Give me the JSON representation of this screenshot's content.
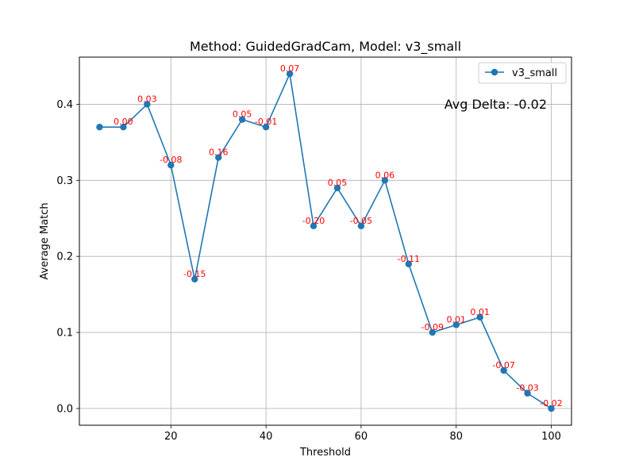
{
  "chart_data": {
    "type": "line",
    "title": "Method: GuidedGradCam, Model: v3_small",
    "xlabel": "Threshold",
    "ylabel": "Average Match",
    "xlim": [
      0.75,
      104.25
    ],
    "ylim": [
      -0.022,
      0.462
    ],
    "xticks": [
      20,
      40,
      60,
      80,
      100
    ],
    "yticks": [
      0.0,
      0.1,
      0.2,
      0.3,
      0.4
    ],
    "xtick_labels": [
      "20",
      "40",
      "60",
      "80",
      "100"
    ],
    "ytick_labels": [
      "0.0",
      "0.1",
      "0.2",
      "0.3",
      "0.4"
    ],
    "grid": true,
    "legend_position": "top-right",
    "annotation": "Avg Delta: -0.02",
    "x": [
      5,
      10,
      15,
      20,
      25,
      30,
      35,
      40,
      45,
      50,
      55,
      60,
      65,
      70,
      75,
      80,
      85,
      90,
      95,
      100
    ],
    "series": [
      {
        "name": "v3_small",
        "color": "#1f77b4",
        "values": [
          0.37,
          0.37,
          0.4,
          0.32,
          0.17,
          0.33,
          0.38,
          0.37,
          0.44,
          0.24,
          0.29,
          0.24,
          0.3,
          0.19,
          0.1,
          0.11,
          0.12,
          0.05,
          0.02,
          0.0
        ]
      }
    ],
    "point_labels": [
      "",
      "0.00",
      "0.03",
      "-0.08",
      "-0.15",
      "0.16",
      "0.05",
      "-0.01",
      "0.07",
      "-0.20",
      "0.05",
      "-0.05",
      "0.06",
      "-0.11",
      "-0.09",
      "0.01",
      "0.01",
      "-0.07",
      "-0.03",
      "-0.02"
    ],
    "point_label_color": "#ff0000"
  }
}
